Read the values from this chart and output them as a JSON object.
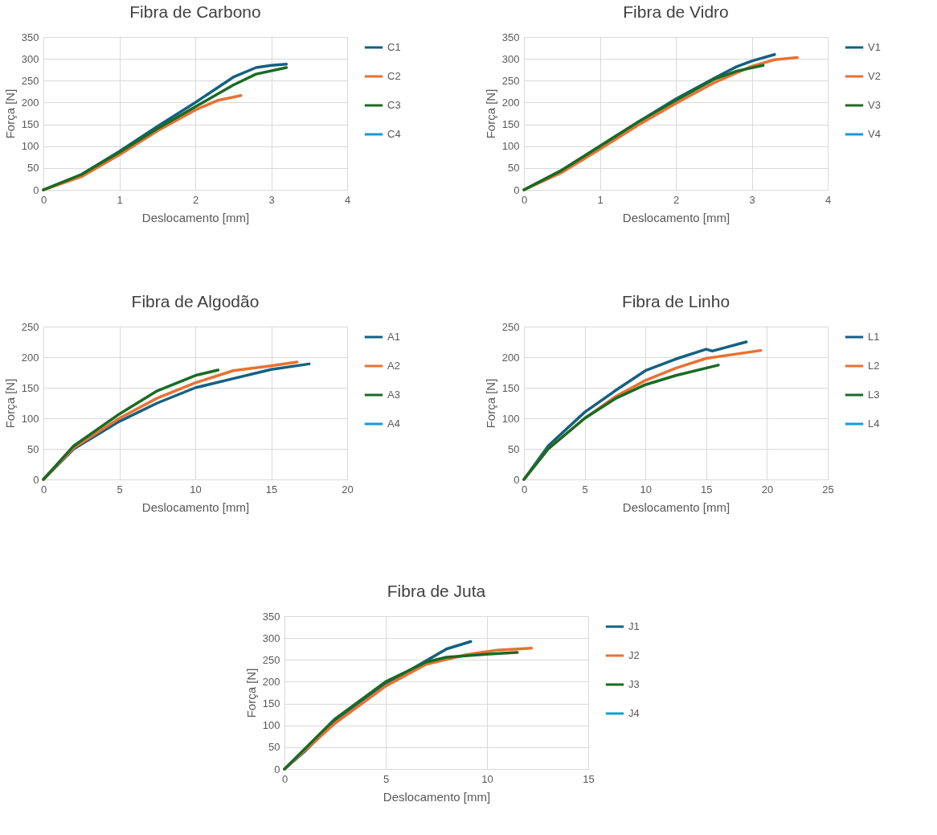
{
  "chart_data": [
    {
      "type": "line",
      "title": "Fibra de Carbono",
      "xlabel": "Deslocamento [mm]",
      "ylabel": "Força [N]",
      "xlim": [
        0,
        4
      ],
      "xticks": [
        0,
        1,
        2,
        3,
        4
      ],
      "ylim": [
        0,
        350
      ],
      "yticks": [
        0,
        50,
        100,
        150,
        200,
        250,
        300,
        350
      ],
      "grid": true,
      "legend": "right",
      "series": [
        {
          "name": "C1",
          "color": "#156082",
          "x": [
            0,
            0.5,
            1,
            1.5,
            2,
            2.5,
            2.8,
            3,
            3.2
          ],
          "values": [
            0,
            35,
            88,
            145,
            200,
            258,
            280,
            285,
            288
          ]
        },
        {
          "name": "C2",
          "color": "#e97132",
          "x": [
            0,
            0.5,
            1,
            1.5,
            2,
            2.3,
            2.6
          ],
          "values": [
            0,
            30,
            80,
            135,
            183,
            205,
            216
          ]
        },
        {
          "name": "C3",
          "color": "#196b24",
          "x": [
            0,
            0.5,
            1,
            1.5,
            2,
            2.5,
            2.8,
            3.2
          ],
          "values": [
            0,
            35,
            86,
            140,
            190,
            240,
            265,
            280
          ]
        },
        {
          "name": "C4",
          "color": "#0f9ed5"
        }
      ]
    },
    {
      "type": "line",
      "title": "Fibra de Vidro",
      "xlabel": "Deslocamento [mm]",
      "ylabel": "Força [N]",
      "xlim": [
        0,
        4
      ],
      "xticks": [
        0,
        1,
        2,
        3,
        4
      ],
      "ylim": [
        0,
        350
      ],
      "yticks": [
        0,
        50,
        100,
        150,
        200,
        250,
        300,
        350
      ],
      "grid": true,
      "legend": "right",
      "series": [
        {
          "name": "V1",
          "color": "#156082",
          "x": [
            0,
            0.5,
            1,
            1.5,
            2,
            2.5,
            2.8,
            3,
            3.3
          ],
          "values": [
            0,
            45,
            100,
            155,
            208,
            255,
            282,
            295,
            310
          ]
        },
        {
          "name": "V2",
          "color": "#e97132",
          "x": [
            0,
            0.5,
            1,
            1.5,
            2,
            2.5,
            3,
            3.3,
            3.6
          ],
          "values": [
            0,
            40,
            93,
            148,
            198,
            245,
            283,
            298,
            303
          ]
        },
        {
          "name": "V3",
          "color": "#196b24",
          "x": [
            0,
            0.5,
            1,
            1.5,
            2,
            2.5,
            2.8,
            3.15
          ],
          "values": [
            0,
            45,
            100,
            155,
            205,
            253,
            272,
            285
          ]
        },
        {
          "name": "V4",
          "color": "#0f9ed5"
        }
      ]
    },
    {
      "type": "line",
      "title": "Fibra de Algodão",
      "xlabel": "Deslocamento [mm]",
      "ylabel": "Força [N]",
      "xlim": [
        0,
        20
      ],
      "xticks": [
        0,
        5,
        10,
        15,
        20
      ],
      "ylim": [
        0,
        250
      ],
      "yticks": [
        0,
        50,
        100,
        150,
        200,
        250
      ],
      "grid": true,
      "legend": "right",
      "series": [
        {
          "name": "A1",
          "color": "#156082",
          "x": [
            0,
            2,
            5,
            7.5,
            10,
            12.5,
            15,
            17.5
          ],
          "values": [
            0,
            50,
            95,
            125,
            150,
            165,
            180,
            189
          ]
        },
        {
          "name": "A2",
          "color": "#e97132",
          "x": [
            0,
            2,
            5,
            7.5,
            10,
            12.5,
            15,
            16.7
          ],
          "values": [
            0,
            52,
            100,
            133,
            158,
            178,
            186,
            192
          ]
        },
        {
          "name": "A3",
          "color": "#196b24",
          "x": [
            0,
            2,
            5,
            7.5,
            10,
            11.5
          ],
          "values": [
            0,
            55,
            107,
            145,
            170,
            179
          ]
        },
        {
          "name": "A4",
          "color": "#0f9ed5"
        }
      ]
    },
    {
      "type": "line",
      "title": "Fibra de Linho",
      "xlabel": "Deslocamento [mm]",
      "ylabel": "Força [N]",
      "xlim": [
        0,
        25
      ],
      "xticks": [
        0,
        5,
        10,
        15,
        20,
        25
      ],
      "ylim": [
        0,
        250
      ],
      "yticks": [
        0,
        50,
        100,
        150,
        200,
        250
      ],
      "grid": true,
      "legend": "right",
      "series": [
        {
          "name": "L1",
          "color": "#156082",
          "x": [
            0,
            2,
            5,
            7.5,
            10,
            12.5,
            15,
            15.5,
            18.3
          ],
          "values": [
            0,
            55,
            110,
            145,
            178,
            197,
            213,
            210,
            225
          ]
        },
        {
          "name": "L2",
          "color": "#e97132",
          "x": [
            0,
            2,
            5,
            7.5,
            10,
            12.5,
            15,
            19.5
          ],
          "values": [
            0,
            50,
            100,
            135,
            162,
            182,
            198,
            211
          ]
        },
        {
          "name": "L3",
          "color": "#196b24",
          "x": [
            0,
            2,
            5,
            7.5,
            10,
            12.5,
            16
          ],
          "values": [
            0,
            50,
            100,
            132,
            155,
            170,
            187
          ]
        },
        {
          "name": "L4",
          "color": "#0f9ed5"
        }
      ]
    },
    {
      "type": "line",
      "title": "Fibra de Juta",
      "xlabel": "Deslocamento [mm]",
      "ylabel": "Força [N]",
      "xlim": [
        0,
        15
      ],
      "xticks": [
        0,
        5,
        10,
        15
      ],
      "ylim": [
        0,
        350
      ],
      "yticks": [
        0,
        50,
        100,
        150,
        200,
        250,
        300,
        350
      ],
      "grid": true,
      "legend": "right",
      "series": [
        {
          "name": "J1",
          "color": "#156082",
          "x": [
            0,
            1,
            2.5,
            5,
            7,
            8,
            9.2
          ],
          "values": [
            0,
            40,
            110,
            195,
            248,
            275,
            292
          ]
        },
        {
          "name": "J2",
          "color": "#e97132",
          "x": [
            0,
            2.5,
            5,
            7,
            9,
            10.5,
            12.2
          ],
          "values": [
            0,
            105,
            190,
            240,
            262,
            272,
            277
          ]
        },
        {
          "name": "J3",
          "color": "#196b24",
          "x": [
            0,
            2.5,
            5,
            7,
            8,
            10,
            11.5
          ],
          "values": [
            0,
            115,
            200,
            245,
            256,
            263,
            267
          ]
        },
        {
          "name": "J4",
          "color": "#0f9ed5"
        }
      ]
    }
  ]
}
